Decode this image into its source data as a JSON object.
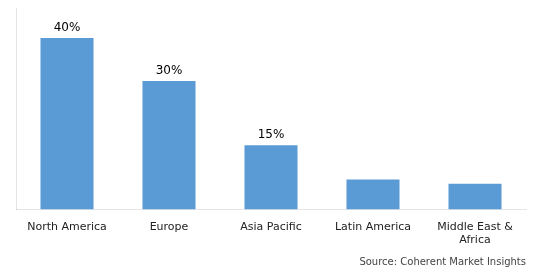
{
  "chart_data": {
    "type": "bar",
    "categories": [
      "North America",
      "Europe",
      "Asia Pacific",
      "Latin America",
      "Middle East &\nAfrica"
    ],
    "values": [
      40,
      30,
      15,
      7,
      6
    ],
    "value_labels": [
      "40%",
      "30%",
      "15%",
      null,
      null
    ],
    "color": "#5B9BD5",
    "ylim": [
      0,
      47
    ],
    "tick_labels": "x",
    "grid": false,
    "annotations": [
      "Source: Coherent Market Insights"
    ]
  }
}
